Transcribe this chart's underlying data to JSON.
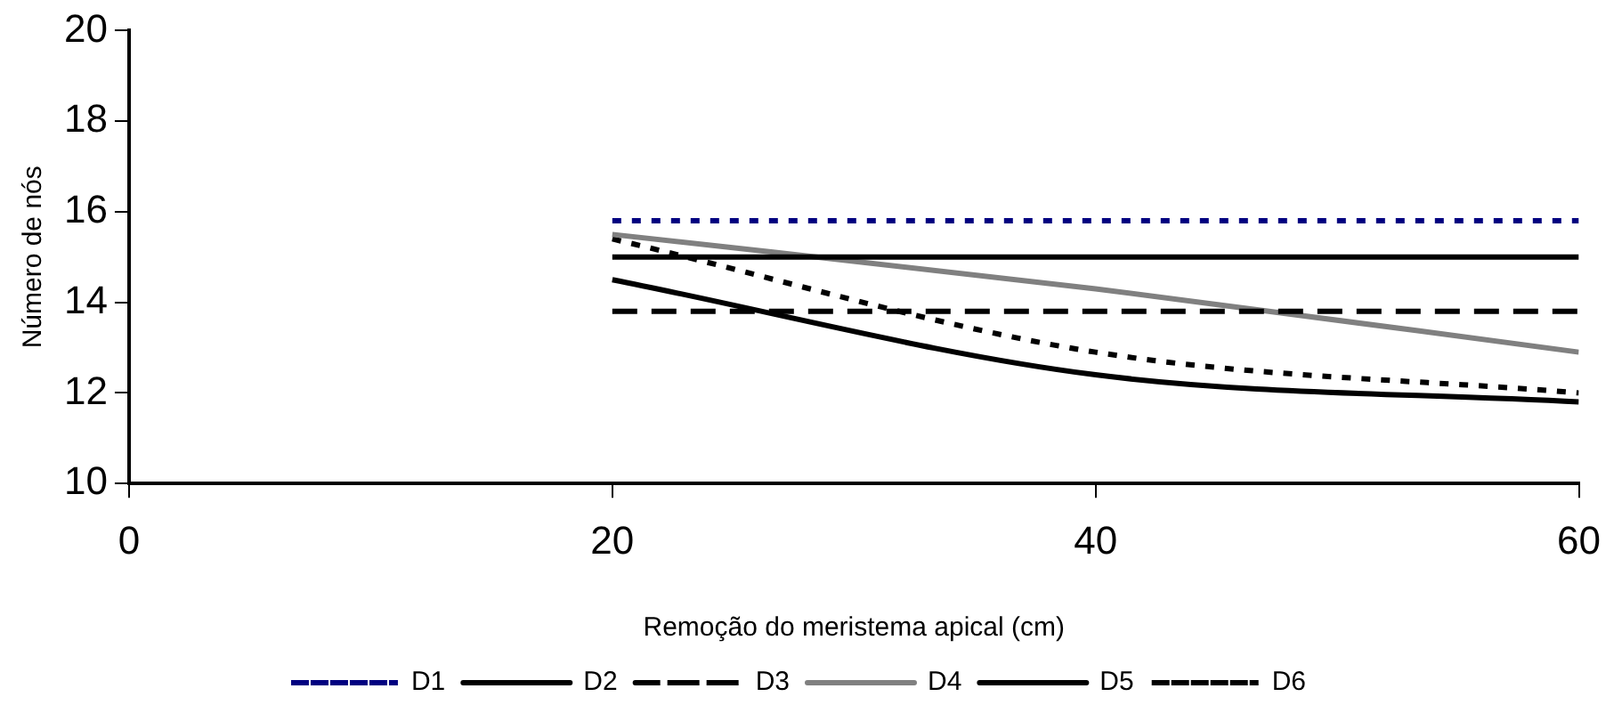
{
  "chart_data": {
    "type": "line",
    "xlabel": "Remoção do meristema apical (cm)",
    "ylabel": "Número de nós",
    "x": [
      20,
      40,
      60
    ],
    "xlim": [
      0,
      60
    ],
    "xticks": [
      0,
      20,
      40,
      60
    ],
    "ylim": [
      10,
      20
    ],
    "yticks": [
      10,
      12,
      14,
      16,
      18,
      20
    ],
    "grid": false,
    "legend": "bottom",
    "marker": "none",
    "series": [
      {
        "name": "D1",
        "color": "#000080",
        "line_style": "dotted",
        "values": [
          15.8,
          15.8,
          15.8
        ]
      },
      {
        "name": "D2",
        "color": "#000000",
        "line_style": "solid",
        "values": [
          15.0,
          15.0,
          15.0
        ]
      },
      {
        "name": "D3",
        "color": "#000000",
        "line_style": "dashed",
        "values": [
          13.8,
          13.8,
          13.8
        ]
      },
      {
        "name": "D4",
        "color": "#808080",
        "line_style": "solid",
        "values": [
          15.5,
          14.3,
          12.9
        ]
      },
      {
        "name": "D5",
        "color": "#000000",
        "line_style": "solid",
        "values": [
          14.5,
          12.4,
          11.8
        ]
      },
      {
        "name": "D6",
        "color": "#000000",
        "line_style": "dotted",
        "values": [
          15.4,
          12.9,
          12.0
        ]
      }
    ]
  }
}
